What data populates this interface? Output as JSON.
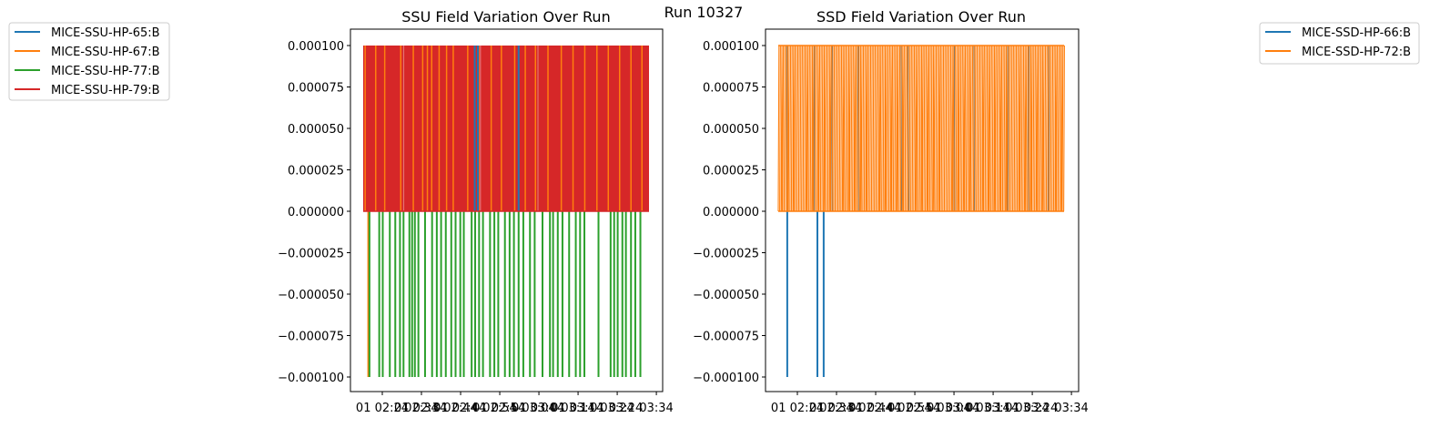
{
  "suptitle": "Run 10327",
  "chart_data": [
    {
      "type": "line",
      "title": "SSU Field Variation Over Run",
      "xlabel": "",
      "ylabel": "",
      "x_tick_labels": [
        "01 02:24",
        "02:34",
        "02:44",
        "02:54",
        "03:04",
        "03:14",
        "03:24",
        "03:34"
      ],
      "x_tick_labels_overlap": [
        "",
        "01 02:34",
        "01 02:44",
        "01 02:54",
        "01 03:04",
        "01 03:14",
        "01 03:24",
        ""
      ],
      "x_range_minutes": [
        0,
        73
      ],
      "x_start": "01 02:24",
      "y_tick_labels": [
        "−0.000100",
        "−0.000075",
        "−0.000050",
        "−0.000025",
        "0.000000",
        "0.000025",
        "0.000050",
        "0.000075",
        "0.000100"
      ],
      "ylim": [
        -0.000109,
        0.00011
      ],
      "legend_position": "outside-left",
      "series": [
        {
          "name": "MICE-SSU-HP-65:B",
          "color": "#1f77b4",
          "spikes_up": [
            1.5,
            4.5,
            6,
            7.6,
            14.7,
            15.6,
            16.3,
            17.0,
            18.7,
            19.5,
            21.7,
            22.8,
            25.7,
            27.6,
            30.3,
            33.3,
            36.0,
            39.5,
            43.7,
            47.6,
            51.7,
            55.8,
            58.5,
            61.0,
            63.5,
            66.7,
            69.5,
            72.0
          ],
          "spikes_down": []
        },
        {
          "name": "MICE-SSU-HP-67:B",
          "color": "#ff7f0e",
          "spikes_up": [
            0.5,
            3.2,
            5.5,
            9.6,
            12.8,
            15.2,
            16.4,
            17.5,
            19.4,
            21.3,
            23.0,
            26.7,
            29.5,
            32.7,
            35.3,
            38.7,
            41.4,
            44.0,
            47.2,
            50.6,
            53.6,
            56.6,
            59.7,
            62.6,
            65.5,
            68.4,
            71.2
          ],
          "spikes_down": [
            1.3
          ]
        },
        {
          "name": "MICE-SSU-HP-77:B",
          "color": "#2ca02c",
          "spikes_up": [],
          "spikes_down": [
            1.6,
            4.1,
            5.0,
            6.8,
            8.2,
            9.4,
            10.3,
            11.8,
            12.5,
            13.2,
            14.1,
            15.8,
            17.6,
            18.8,
            19.9,
            21.1,
            22.5,
            23.6,
            24.8,
            25.7,
            27.7,
            28.6,
            29.6,
            30.6,
            32.4,
            33.5,
            34.5,
            36.2,
            37.4,
            38.5,
            39.7,
            40.9,
            42.6,
            43.8,
            45.8,
            47.7,
            48.5,
            49.7,
            50.9,
            52.6,
            54.3,
            55.4,
            56.5,
            60.1,
            63.2,
            64.1,
            65.0,
            66.2,
            67.1,
            68.4,
            69.5,
            70.8
          ]
        },
        {
          "name": "MICE-SSU-HP-79:B",
          "color": "#d62728",
          "spikes_up": [],
          "spikes_down": [],
          "fill_top": [
            0,
            73
          ]
        }
      ]
    },
    {
      "type": "line",
      "title": "SSD Field Variation Over Run",
      "xlabel": "",
      "ylabel": "",
      "x_tick_labels": [
        "01 02:24",
        "02:34",
        "02:44",
        "02:54",
        "03:04",
        "03:14",
        "03:24",
        "03:34"
      ],
      "x_tick_labels_overlap": [
        "",
        "01 02:34",
        "01 02:44",
        "01 02:54",
        "01 03:04",
        "01 03:14",
        "01 03:24",
        ""
      ],
      "x_range_minutes": [
        0,
        73
      ],
      "x_start": "01 02:24",
      "y_tick_labels": [
        "−0.000100",
        "−0.000075",
        "−0.000050",
        "−0.000025",
        "0.000000",
        "0.000025",
        "0.000050",
        "0.000075",
        "0.000100"
      ],
      "ylim": [
        -0.000109,
        0.00011
      ],
      "legend_position": "outside-right",
      "series": [
        {
          "name": "MICE-SSD-HP-66:B",
          "color": "#1f77b4",
          "spikes_up": [
            2.3,
            9.2,
            13.8,
            20.5,
            31.4,
            33.2,
            45.0,
            50.0,
            58.6,
            64.0,
            69.0
          ],
          "spikes_down": [
            2.3,
            10.0,
            11.6
          ]
        },
        {
          "name": "MICE-SSD-HP-72:B",
          "color": "#ff7f0e",
          "pattern": "dense_toggle",
          "spikes_up": [],
          "spikes_down": []
        }
      ]
    }
  ]
}
